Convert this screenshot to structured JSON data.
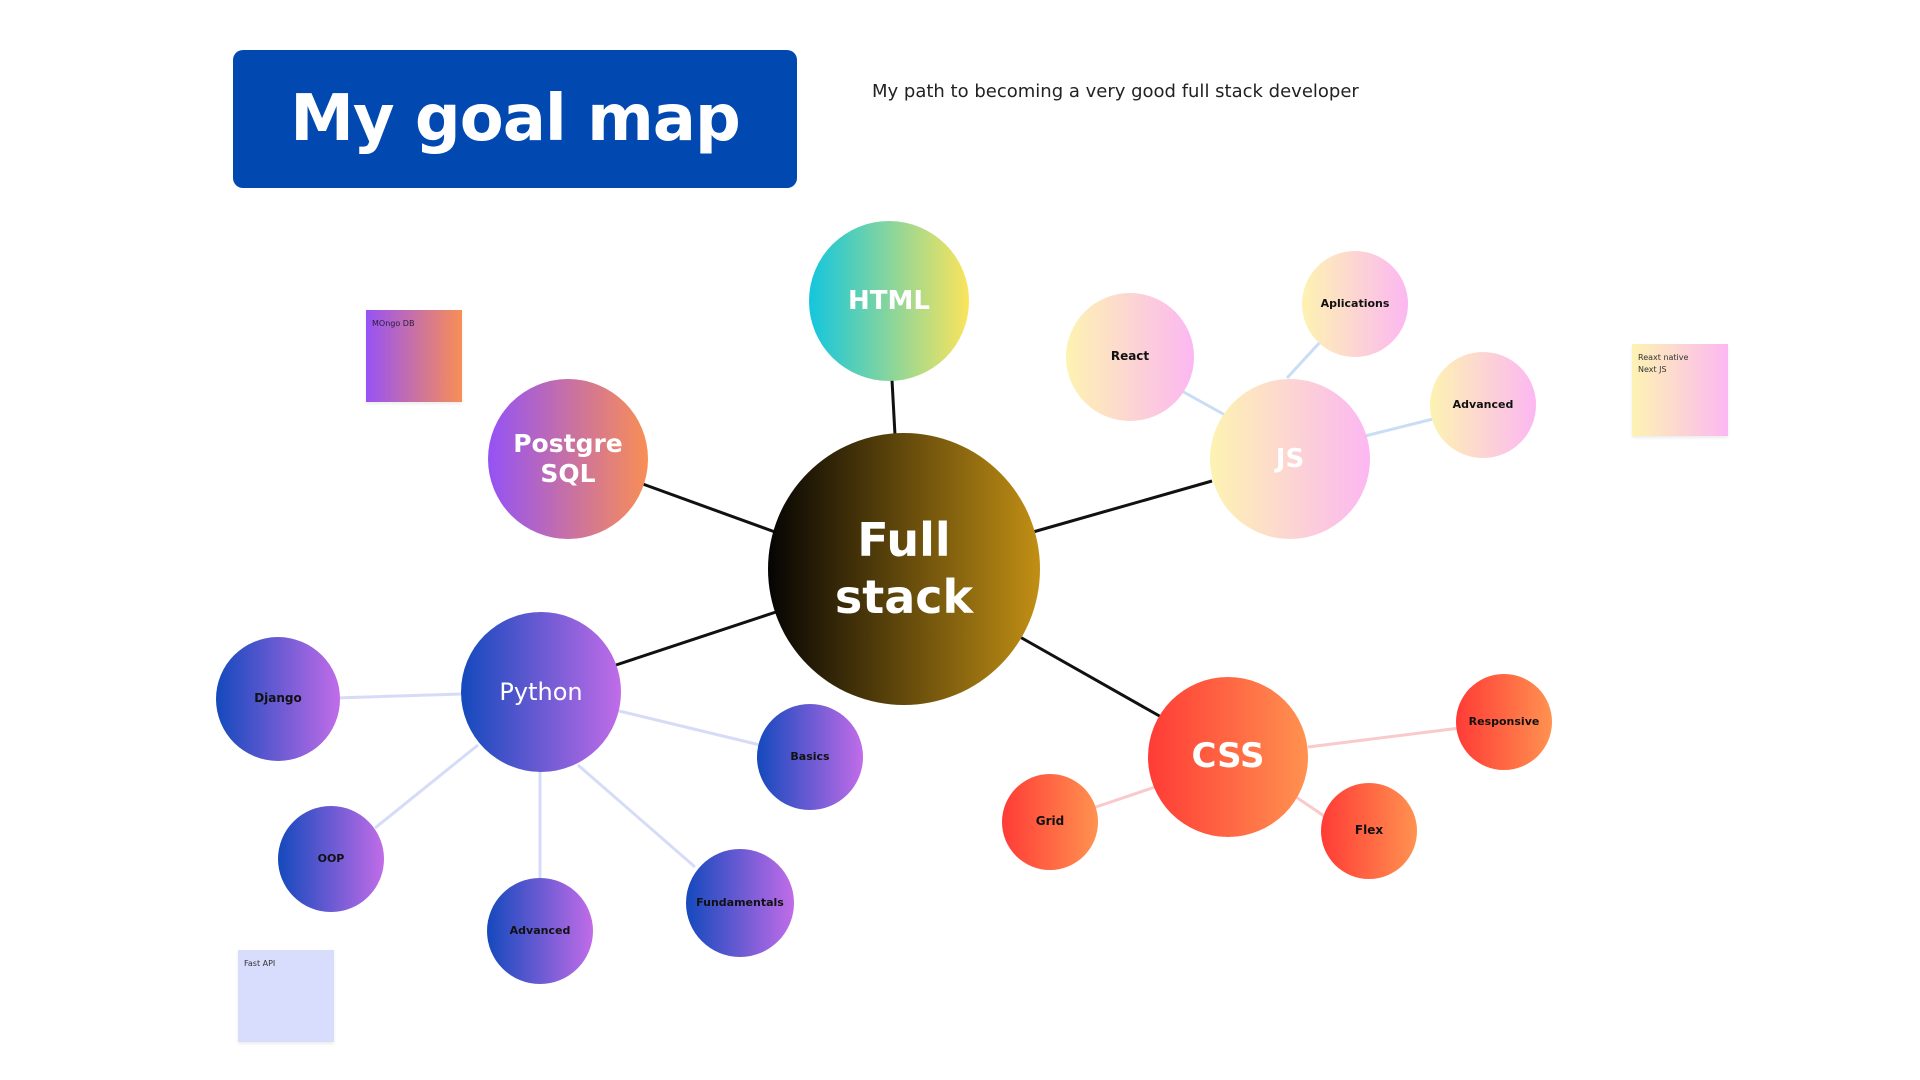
{
  "title": "My goal map",
  "subtitle": "My path to becoming a very good full stack developer",
  "colors": {
    "title_bg": "#0149b0",
    "dark_link": "#111111",
    "python_link": "#d6dcf7",
    "js_link": "#c9ddf5",
    "css_link": "#f9c9cc"
  },
  "nodes": {
    "center": "Full\nstack",
    "html": "HTML",
    "postgres": "Postgre\nSQL",
    "js": "JS",
    "css": "CSS",
    "python": "Python",
    "react": "React",
    "aplications": "Aplications",
    "js_advanced": "Advanced",
    "django": "Django",
    "basics": "Basics",
    "oop": "OOP",
    "py_advanced": "Advanced",
    "fundamentals": "Fundamentals",
    "grid": "Grid",
    "flex": "Flex",
    "responsive": "Responsive"
  },
  "stickies": {
    "mongo": "MOngo DB",
    "react_native": "Reaxt native\nNext JS",
    "fastapi": "Fast API"
  }
}
